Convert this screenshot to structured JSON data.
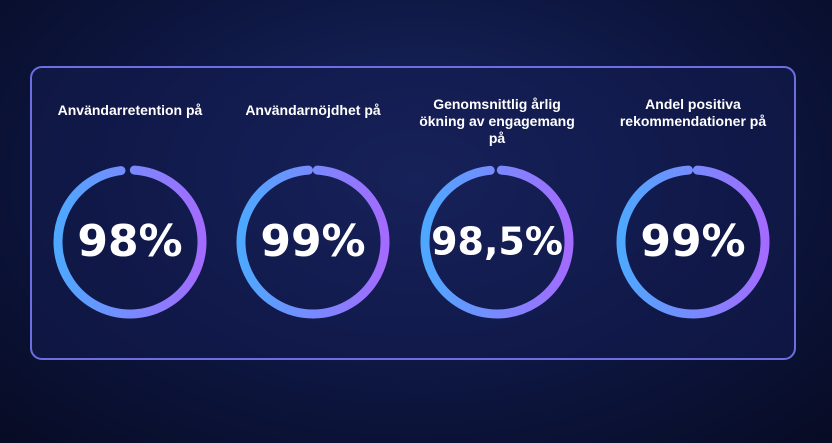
{
  "chart_data": {
    "type": "ring",
    "categories": [
      "Användarretention på",
      "Användarnöjdhet på",
      "Genomsnittlig årlig ökning av engagemang på",
      "Andel positiva rekommendationer på"
    ],
    "values": [
      98,
      99,
      98.5,
      99
    ],
    "value_labels": [
      "98%",
      "99%",
      "98,5%",
      "99%"
    ],
    "colors": [
      "#4ea8ff",
      "#a36bff"
    ]
  }
}
